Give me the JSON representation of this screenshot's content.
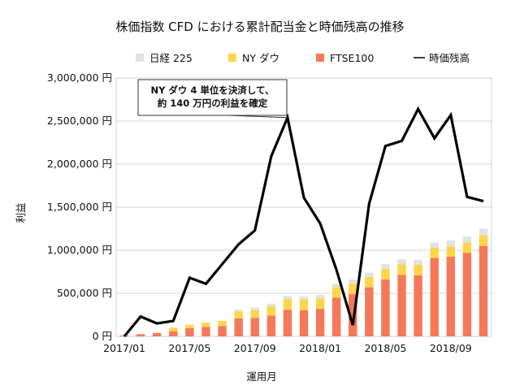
{
  "chart_data": {
    "type": "bar",
    "stacked": true,
    "title": "株価指数 CFD における累計配当金と時価残高の推移",
    "xlabel": "運用月",
    "ylabel": "利益",
    "ylim": [
      0,
      3000000
    ],
    "ytick_values": [
      0,
      500000,
      1000000,
      1500000,
      2000000,
      2500000,
      3000000
    ],
    "ytick_labels": [
      "0 円",
      "500,000 円",
      "1,000,000 円",
      "1,500,000 円",
      "2,000,000 円",
      "2,500,000 円",
      "3,000,000 円"
    ],
    "xtick_labels": [
      "2017/01",
      "2017/05",
      "2017/09",
      "2018/01",
      "2018/05",
      "2018/09"
    ],
    "xtick_every": 4,
    "grid": "horizontal",
    "legend_position": "top",
    "categories": [
      "2017/01",
      "2017/02",
      "2017/03",
      "2017/04",
      "2017/05",
      "2017/06",
      "2017/07",
      "2017/08",
      "2017/09",
      "2017/10",
      "2017/11",
      "2017/12",
      "2018/01",
      "2018/02",
      "2018/03",
      "2018/04",
      "2018/05",
      "2018/06",
      "2018/07",
      "2018/08",
      "2018/09",
      "2018/10",
      "2018/11"
    ],
    "series": [
      {
        "name": "FTSE100",
        "kind": "bar",
        "color": "#f4795b",
        "values": [
          10000,
          25000,
          40000,
          60000,
          95000,
          110000,
          120000,
          210000,
          215000,
          240000,
          310000,
          305000,
          320000,
          450000,
          490000,
          570000,
          660000,
          715000,
          710000,
          910000,
          925000,
          970000,
          1050000
        ]
      },
      {
        "name": "NY ダウ",
        "kind": "bar",
        "color": "#fcd54a",
        "values": [
          0,
          0,
          0,
          40000,
          40000,
          50000,
          60000,
          80000,
          90000,
          110000,
          120000,
          120000,
          120000,
          120000,
          120000,
          120000,
          120000,
          120000,
          120000,
          120000,
          120000,
          120000,
          120000
        ]
      },
      {
        "name": "日経 225",
        "kind": "bar",
        "color": "#e2e2e2",
        "values": [
          0,
          0,
          0,
          0,
          0,
          0,
          0,
          20000,
          30000,
          30000,
          40000,
          40000,
          40000,
          40000,
          50000,
          50000,
          60000,
          60000,
          60000,
          60000,
          70000,
          70000,
          80000
        ]
      },
      {
        "name": "時価残高",
        "kind": "line",
        "color": "#000000",
        "values": [
          0,
          230000,
          150000,
          180000,
          680000,
          610000,
          840000,
          1070000,
          1230000,
          2090000,
          2540000,
          1610000,
          1310000,
          770000,
          130000,
          1540000,
          2210000,
          2270000,
          2640000,
          2300000,
          2570000,
          1620000,
          1570000
        ]
      }
    ],
    "annotation": {
      "lines": [
        "NY ダウ 4 単位を決済して、",
        "約 140 万円の利益を確定"
      ],
      "target_index": 10
    }
  }
}
